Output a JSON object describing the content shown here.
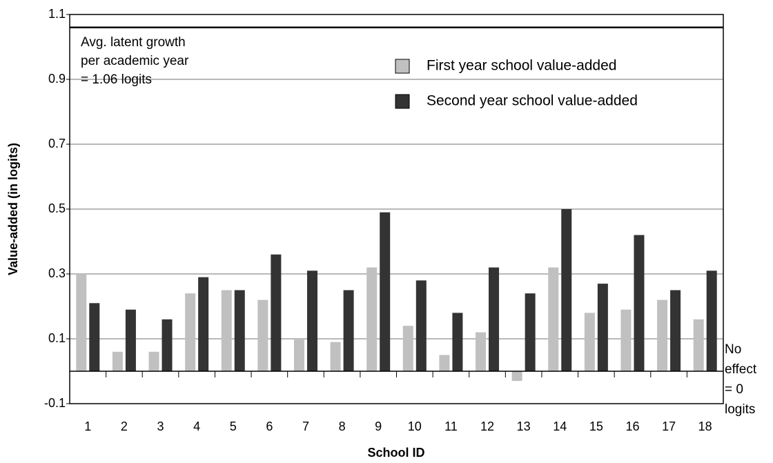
{
  "chart_data": {
    "type": "bar",
    "x_label": "School ID",
    "y_label": "Value-added (in logits)",
    "categories": [
      "1",
      "2",
      "3",
      "4",
      "5",
      "6",
      "7",
      "8",
      "9",
      "10",
      "11",
      "12",
      "13",
      "14",
      "15",
      "16",
      "17",
      "18"
    ],
    "series": [
      {
        "name": "First year school value-added",
        "color": "#c0c0c0",
        "values": [
          0.3,
          0.06,
          0.06,
          0.24,
          0.25,
          0.22,
          0.1,
          0.09,
          0.32,
          0.14,
          0.05,
          0.12,
          -0.03,
          0.32,
          0.18,
          0.19,
          0.22,
          0.16
        ]
      },
      {
        "name": "Second year school value-added",
        "color": "#333333",
        "values": [
          0.21,
          0.19,
          0.16,
          0.29,
          0.25,
          0.36,
          0.31,
          0.25,
          0.49,
          0.28,
          0.18,
          0.32,
          0.24,
          0.5,
          0.27,
          0.42,
          0.25,
          0.31
        ]
      }
    ],
    "ylim": [
      -0.1,
      1.1
    ],
    "yticks": [
      -0.1,
      0.1,
      0.3,
      0.5,
      0.7,
      0.9,
      1.1
    ],
    "grid": true,
    "reference_lines": [
      {
        "value": 1.06,
        "label": [
          "Avg. latent growth",
          "per academic year",
          "= 1.06 logits"
        ],
        "position": "top-left"
      },
      {
        "value": 0,
        "label": [
          "No",
          "effect",
          "= 0",
          "logits"
        ],
        "position": "right"
      }
    ]
  }
}
